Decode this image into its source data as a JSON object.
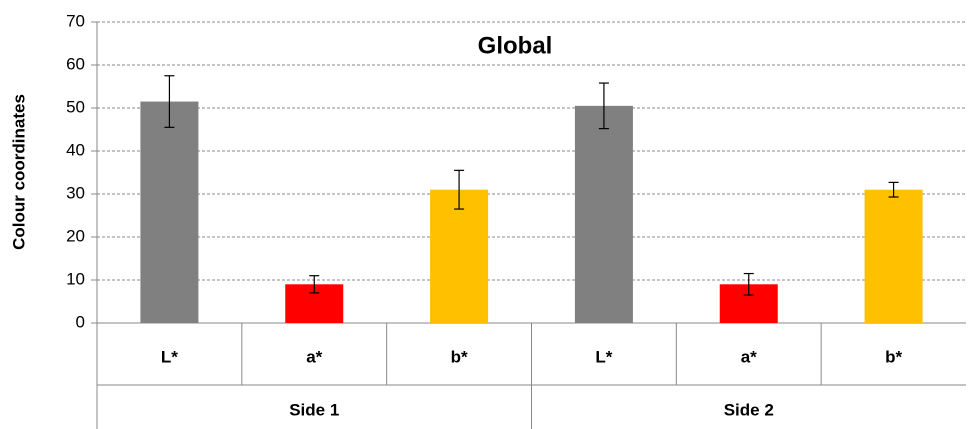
{
  "chart_data": {
    "type": "bar",
    "title": "Global",
    "y_label": "Colour coordinates",
    "categories": [
      "L*",
      "a*",
      "b*",
      "L*",
      "a*",
      "b*"
    ],
    "groups": [
      "Side 1",
      "Side 2"
    ],
    "values": [
      51.5,
      9,
      31,
      50.5,
      9,
      31
    ],
    "errors": [
      6,
      2,
      4.5,
      5.3,
      2.5,
      1.7
    ],
    "colors": [
      "#808080",
      "#ff0000",
      "#ffc000",
      "#808080",
      "#ff0000",
      "#ffc000"
    ],
    "ylim": [
      0,
      70
    ],
    "yticks": [
      0,
      10,
      20,
      30,
      40,
      50,
      60,
      70
    ],
    "grid": true
  }
}
